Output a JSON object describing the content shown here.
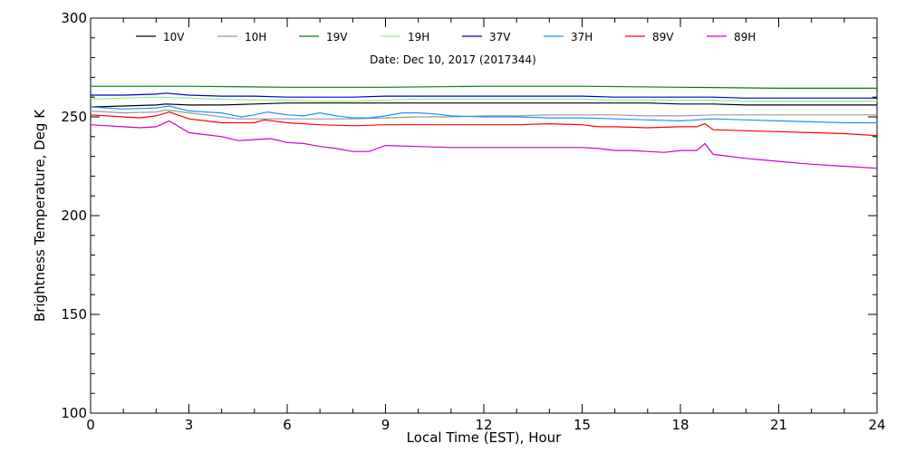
{
  "chart_data": {
    "type": "line",
    "title": "",
    "subtitle": "Date: Dec 10, 2017 (2017344)",
    "xlabel": "Local Time (EST), Hour",
    "ylabel": "Brightness Temperature, Deg K",
    "xlim": [
      0,
      24
    ],
    "ylim": [
      100,
      300
    ],
    "xticks": [
      0,
      3,
      6,
      9,
      12,
      15,
      18,
      21,
      24
    ],
    "yticks": [
      100,
      150,
      200,
      250,
      300
    ],
    "grid": false,
    "legend_position": "top",
    "series": [
      {
        "name": "10V",
        "color": "#000000",
        "x": [
          0,
          1,
          2,
          2.3,
          3,
          4,
          5,
          6,
          7,
          8,
          9,
          10,
          11,
          12,
          13,
          14,
          15,
          16,
          17,
          18,
          19,
          20,
          21,
          22,
          23,
          24
        ],
        "y": [
          255,
          255.5,
          256,
          256.5,
          256,
          256,
          256.5,
          257,
          257,
          257,
          257,
          257,
          257,
          257,
          257,
          257,
          257,
          257,
          257,
          256.5,
          256.5,
          256,
          256,
          256,
          256,
          256
        ]
      },
      {
        "name": "10H",
        "color": "#999999",
        "x": [
          0,
          1,
          2,
          2.3,
          3,
          4,
          4.5,
          5,
          6,
          7,
          8,
          9,
          10,
          11,
          12,
          13,
          14,
          15,
          16,
          17,
          18,
          19,
          20,
          21,
          22,
          23,
          24
        ],
        "y": [
          253,
          252,
          252.5,
          253.5,
          252,
          250,
          249,
          249,
          249,
          249,
          249,
          249.5,
          250,
          250,
          250.5,
          250.5,
          251,
          251,
          251,
          250.5,
          250.5,
          251,
          251,
          251,
          251,
          251,
          251
        ]
      },
      {
        "name": "19V",
        "color": "#008000",
        "x": [
          0,
          2,
          3,
          6,
          9,
          12,
          15,
          18,
          21,
          24
        ],
        "y": [
          265.5,
          265.5,
          265.5,
          265,
          265,
          265.5,
          265.5,
          265,
          264.5,
          264.5
        ]
      },
      {
        "name": "19H",
        "color": "#90ee90",
        "x": [
          0,
          1,
          2,
          3,
          4,
          5,
          6,
          7,
          8,
          9,
          10,
          11,
          12,
          13,
          14,
          15,
          16,
          17,
          18,
          19,
          20,
          21,
          22,
          23,
          24
        ],
        "y": [
          259,
          259.5,
          260,
          259.5,
          259,
          258.5,
          258.5,
          258,
          258,
          258.5,
          259,
          259,
          259,
          259,
          259,
          259,
          258.5,
          258.5,
          258.5,
          258.5,
          258,
          258,
          258,
          258,
          258
        ]
      },
      {
        "name": "37V",
        "color": "#0000cc",
        "x": [
          0,
          1,
          2,
          2.3,
          3,
          4,
          5,
          6,
          7,
          8,
          9,
          10,
          11,
          12,
          13,
          14,
          15,
          16,
          17,
          18,
          19,
          20,
          21,
          22,
          23,
          24
        ],
        "y": [
          261,
          261,
          261.5,
          262,
          261,
          260.5,
          260.5,
          260,
          260,
          260,
          260.5,
          260.5,
          260.5,
          260.5,
          260.5,
          260.5,
          260.5,
          260,
          260,
          260,
          260,
          259.5,
          259.5,
          259.5,
          259.5,
          259.5
        ]
      },
      {
        "name": "37H",
        "color": "#1e90ff",
        "x": [
          0,
          1,
          2,
          2.4,
          3,
          4,
          4.6,
          5,
          5.4,
          6,
          6.5,
          7,
          7.5,
          8,
          8.5,
          9,
          9.5,
          10,
          10.5,
          11,
          12,
          13,
          14,
          15,
          16,
          17,
          18,
          19,
          20,
          21,
          22,
          23,
          24
        ],
        "y": [
          255,
          254,
          254.5,
          255.5,
          253,
          252,
          250,
          251,
          252.5,
          251,
          250.5,
          252,
          250.5,
          249.5,
          249.5,
          250.5,
          252,
          252,
          251.5,
          250.5,
          250,
          250,
          249.5,
          249.5,
          249,
          248.5,
          248,
          249,
          248.5,
          248,
          247.5,
          247,
          247
        ]
      },
      {
        "name": "89V",
        "color": "#ff0000",
        "x": [
          0,
          1,
          1.5,
          2,
          2.4,
          3,
          3.5,
          4,
          5,
          5.3,
          6,
          7,
          8,
          9,
          10,
          11,
          12,
          13,
          14,
          15,
          15.5,
          16,
          17,
          18,
          18.5,
          18.75,
          19,
          20,
          21,
          22,
          23,
          24
        ],
        "y": [
          251,
          250,
          249.5,
          250.5,
          252.5,
          249,
          248,
          247,
          247,
          248.5,
          247,
          246,
          245.5,
          246,
          246,
          246,
          246,
          246,
          246.5,
          246,
          245,
          245,
          244.5,
          245,
          245,
          246.5,
          243.5,
          243,
          242.5,
          242,
          241.5,
          240.5
        ]
      },
      {
        "name": "89H",
        "color": "#cc00cc",
        "x": [
          0,
          0.5,
          1,
          1.5,
          2,
          2.4,
          3,
          3.5,
          4,
          4.5,
          5,
          5.5,
          6,
          6.5,
          7,
          7.5,
          8,
          8.5,
          9,
          10,
          11,
          12,
          13,
          14,
          15,
          15.5,
          16,
          16.5,
          17,
          17.5,
          18,
          18.5,
          18.75,
          19,
          20,
          21,
          22,
          23,
          24
        ],
        "y": [
          246,
          245.5,
          245,
          244.5,
          245,
          248,
          242,
          241,
          240,
          238,
          238.5,
          239,
          237,
          236.5,
          235,
          234,
          232.5,
          232.5,
          235.5,
          235,
          234.5,
          234.5,
          234.5,
          234.5,
          234.5,
          234,
          233,
          233,
          232.5,
          232,
          233,
          233,
          236.5,
          231,
          229,
          227.5,
          226,
          225,
          224
        ]
      }
    ]
  }
}
